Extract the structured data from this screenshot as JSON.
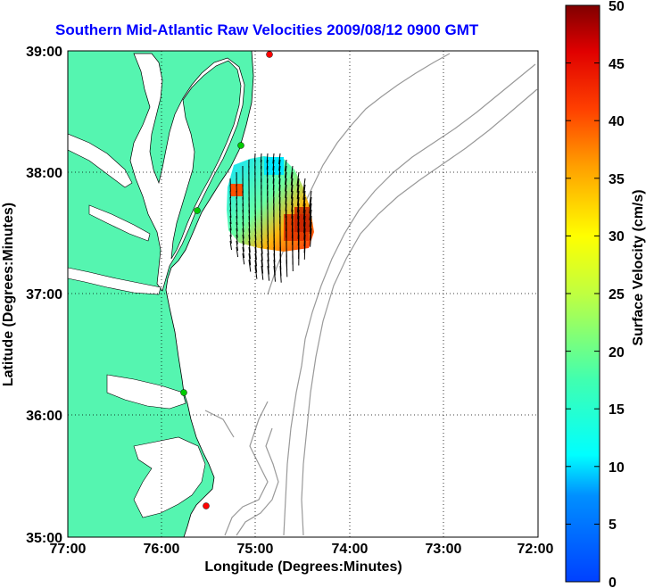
{
  "title": "Southern Mid-Atlantic Raw Velocities 2009/08/12 0900 GMT",
  "map": {
    "xlabel": "Longitude (Degrees:Minutes)",
    "ylabel": "Latitude (Degrees:Minutes)",
    "x_ticks": [
      "77:00",
      "76:00",
      "75:00",
      "74:00",
      "73:00",
      "72:00"
    ],
    "y_ticks": [
      "39:00",
      "38:00",
      "37:00",
      "36:00",
      "35:00"
    ],
    "land_color": "#55f5b0",
    "water_color": "#ffffff",
    "bathymetry_color": "#999999",
    "grid": "dotted"
  },
  "colorbar": {
    "label": "Surface Velocity (cm/s)",
    "ticks": [
      "0",
      "5",
      "10",
      "15",
      "20",
      "25",
      "30",
      "35",
      "40",
      "45",
      "50"
    ],
    "colormap": "jet"
  },
  "stations": [
    {
      "color": "#ff0000"
    },
    {
      "color": "#00cc00"
    },
    {
      "color": "#00cc00"
    },
    {
      "color": "#00cc00"
    },
    {
      "color": "#ff0000"
    }
  ]
}
